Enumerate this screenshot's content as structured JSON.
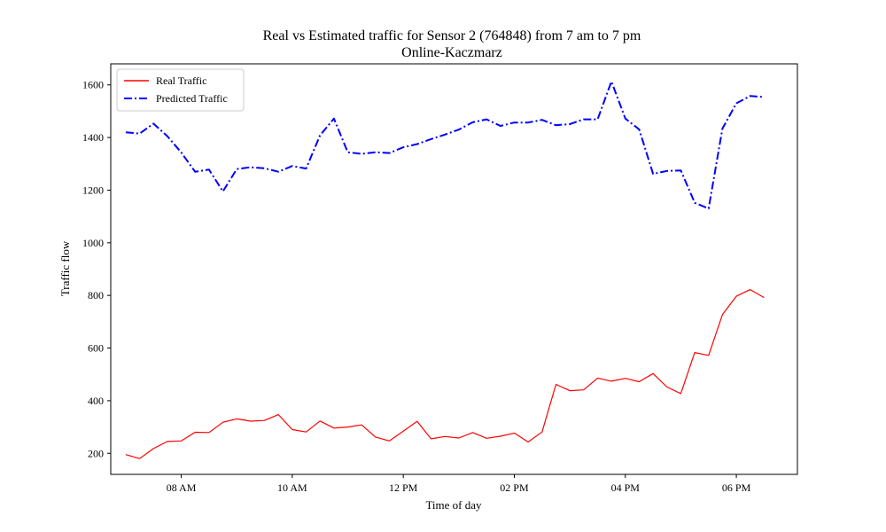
{
  "chart_data": {
    "type": "line",
    "title": "Real vs Estimated traffic for Sensor 2 (764848) from 7 am to 7 pm",
    "subtitle": "Online-Kaczmarz",
    "xlabel": "Time of day",
    "ylabel": "Traffic flow",
    "xlim": [
      6.73,
      19.1
    ],
    "ylim": [
      120,
      1680
    ],
    "x_ticks": [
      {
        "value": 8,
        "label": "08 AM"
      },
      {
        "value": 10,
        "label": "10 AM"
      },
      {
        "value": 12,
        "label": "12 PM"
      },
      {
        "value": 14,
        "label": "02 PM"
      },
      {
        "value": 16,
        "label": "04 PM"
      },
      {
        "value": 18,
        "label": "06 PM"
      }
    ],
    "y_ticks": [
      200,
      400,
      600,
      800,
      1000,
      1200,
      1400,
      1600
    ],
    "grid": false,
    "legend_position": "top-left",
    "x": [
      7.0,
      7.25,
      7.5,
      7.75,
      8.0,
      8.25,
      8.5,
      8.75,
      9.0,
      9.25,
      9.5,
      9.75,
      10.0,
      10.25,
      10.5,
      10.75,
      11.0,
      11.25,
      11.5,
      11.75,
      12.0,
      12.25,
      12.5,
      12.75,
      13.0,
      13.25,
      13.5,
      13.75,
      14.0,
      14.25,
      14.5,
      14.75,
      15.0,
      15.25,
      15.5,
      15.75,
      16.0,
      16.25,
      16.5,
      16.75,
      17.0,
      17.25,
      17.5,
      17.75,
      18.0,
      18.25,
      18.5
    ],
    "series": [
      {
        "name": "Real Traffic",
        "color": "#ff0000",
        "style": "solid",
        "values": [
          195,
          180,
          218,
          245,
          247,
          280,
          279,
          318,
          331,
          322,
          325,
          347,
          290,
          281,
          323,
          296,
          300,
          308,
          262,
          247,
          284,
          321,
          255,
          264,
          258,
          279,
          257,
          265,
          277,
          243,
          281,
          462,
          438,
          441,
          486,
          474,
          485,
          472,
          503,
          452,
          427,
          583,
          572,
          727,
          797,
          822,
          792
        ]
      },
      {
        "name": "Predicted Traffic",
        "color": "#0000ff",
        "style": "dashdot",
        "values": [
          1420,
          1415,
          1453,
          1405,
          1343,
          1270,
          1278,
          1195,
          1280,
          1287,
          1283,
          1270,
          1292,
          1282,
          1408,
          1472,
          1344,
          1338,
          1344,
          1341,
          1363,
          1375,
          1394,
          1411,
          1430,
          1458,
          1469,
          1444,
          1457,
          1457,
          1467,
          1447,
          1451,
          1469,
          1469,
          1613,
          1472,
          1431,
          1262,
          1273,
          1275,
          1152,
          1130,
          1434,
          1530,
          1558,
          1554
        ]
      }
    ]
  }
}
